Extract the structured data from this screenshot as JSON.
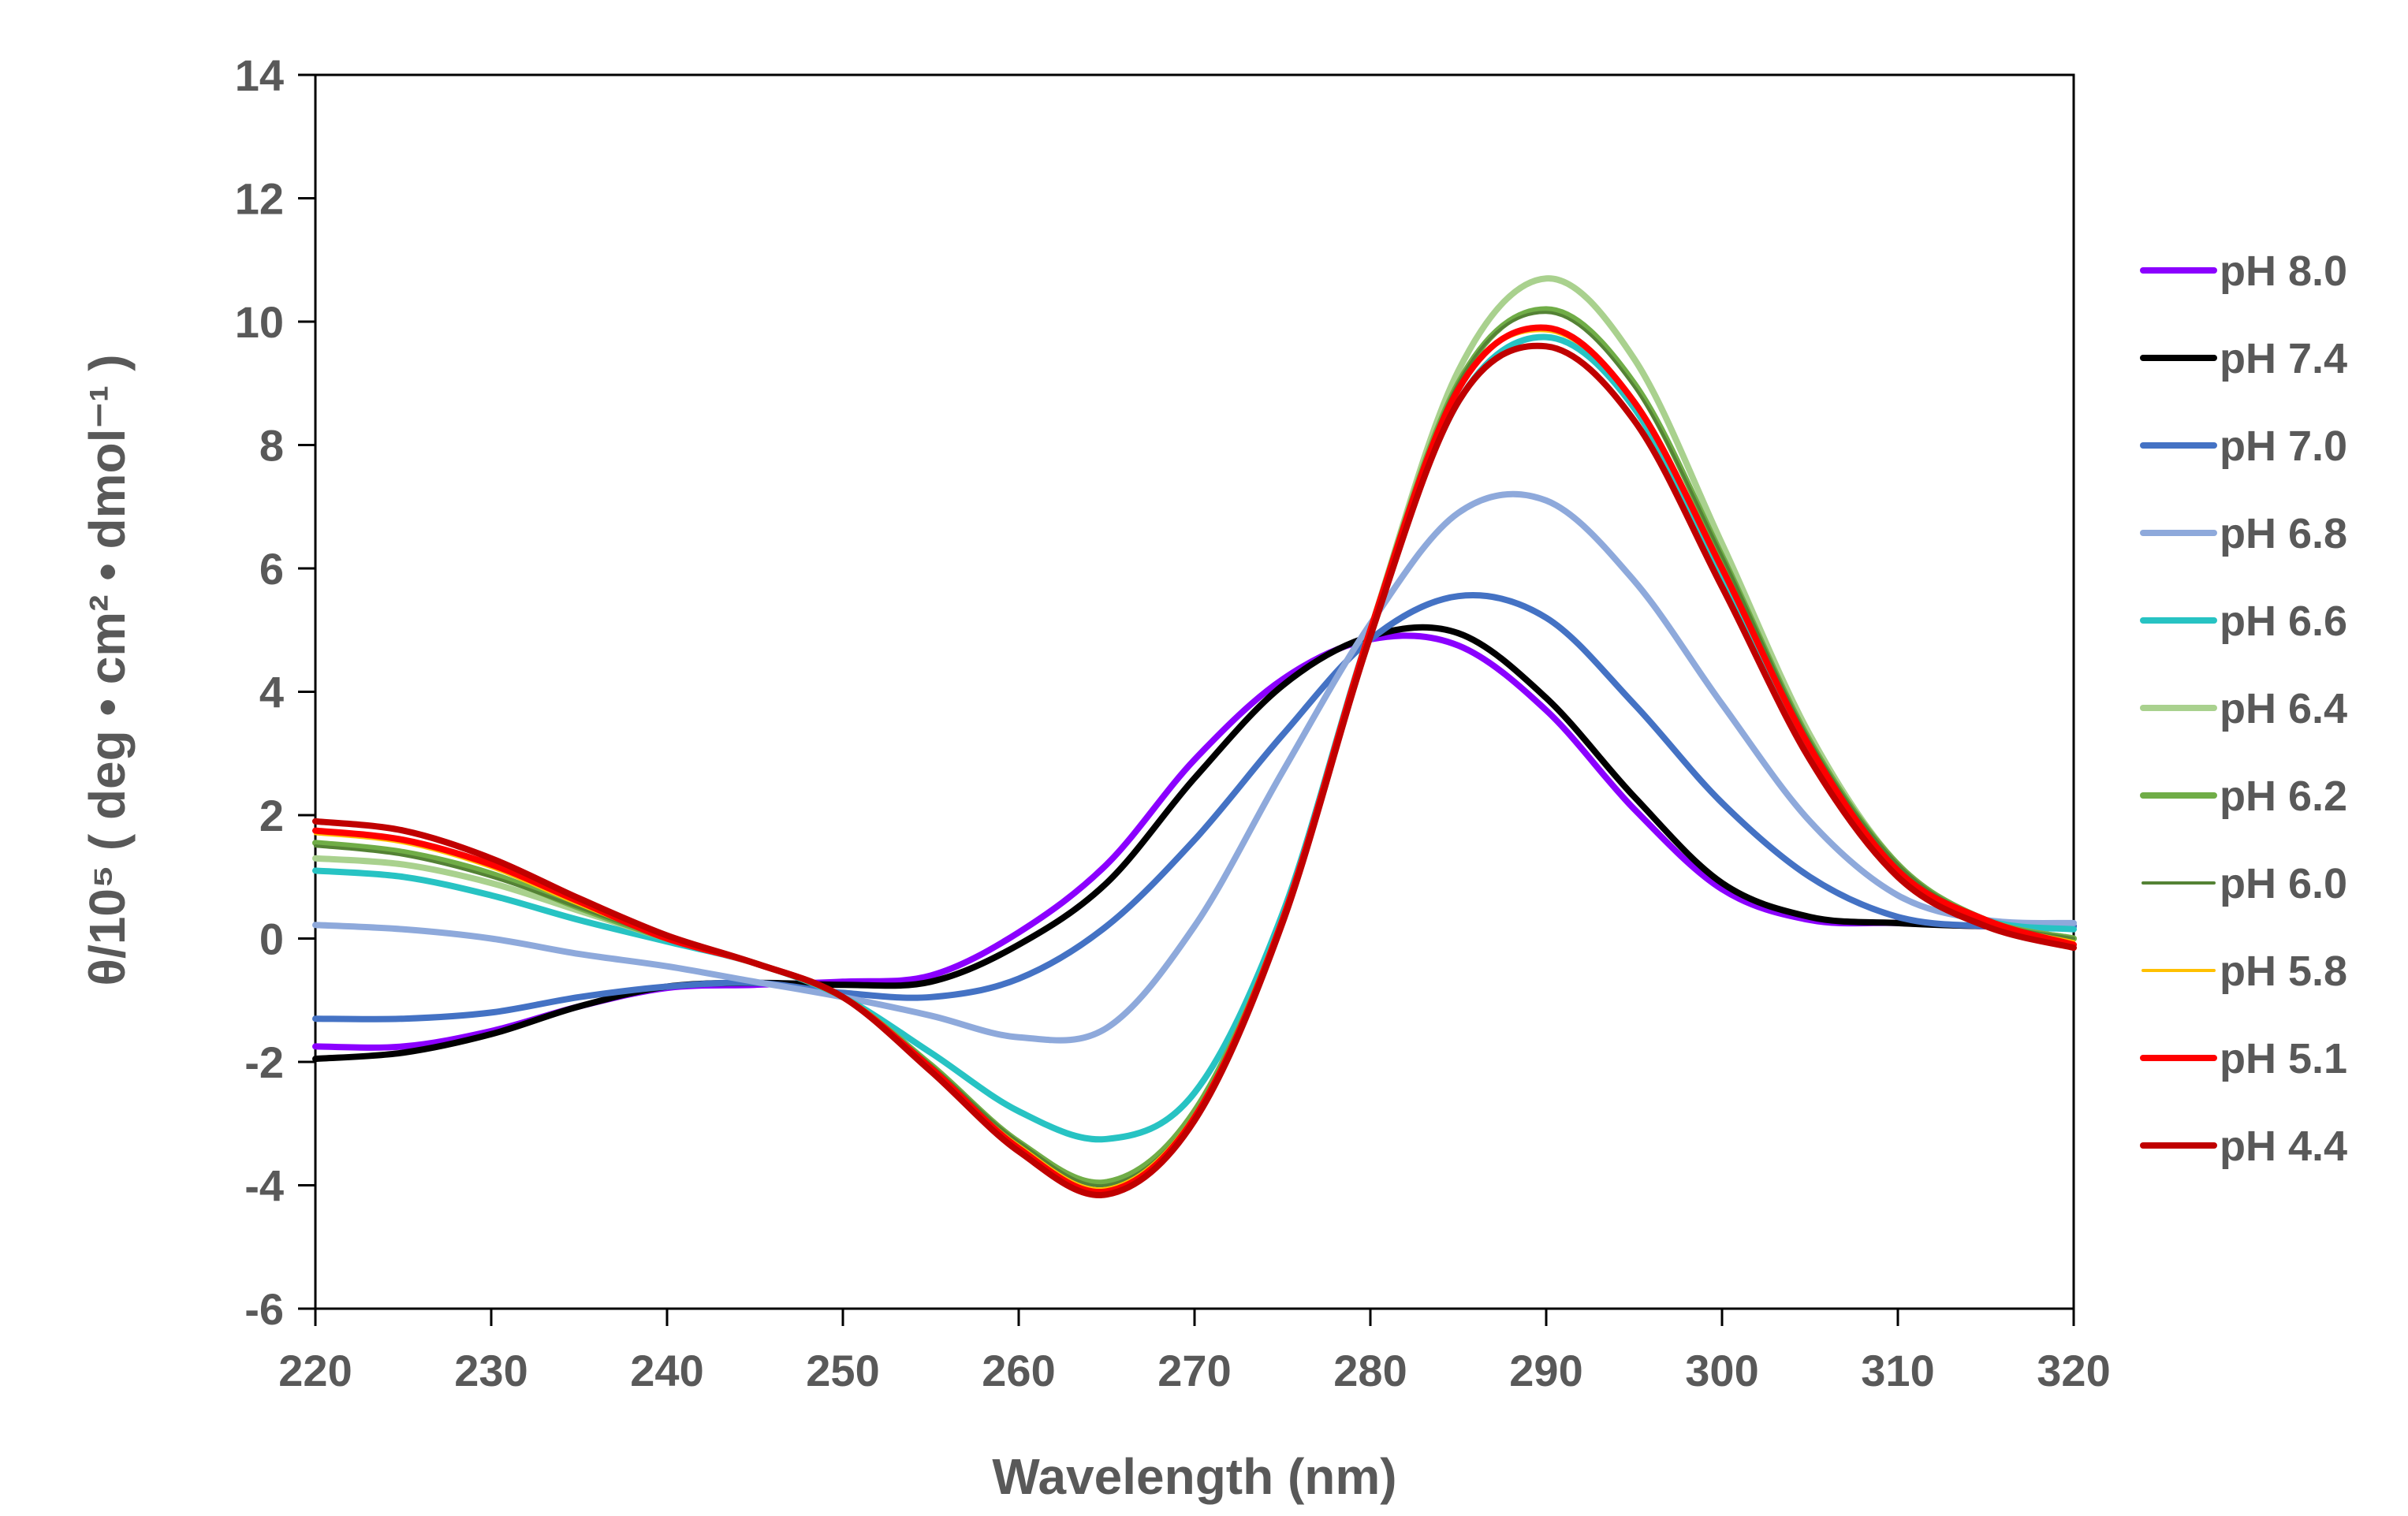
{
  "chart_data": {
    "type": "line",
    "title": "",
    "xlabel": "Wavelength (nm)",
    "ylabel": "θ/10⁵ ( deg • cm² • dmol⁻¹ )",
    "xlim": [
      220,
      320
    ],
    "ylim": [
      -6,
      14
    ],
    "x_ticks": [
      220,
      230,
      240,
      250,
      260,
      270,
      280,
      290,
      300,
      310,
      320
    ],
    "y_ticks": [
      -6,
      -4,
      -2,
      0,
      2,
      4,
      6,
      8,
      10,
      12,
      14
    ],
    "x_tick_labels": [
      "220",
      "230",
      "240",
      "250",
      "260",
      "270",
      "280",
      "290",
      "300",
      "310",
      "320"
    ],
    "y_tick_labels": [
      "-6",
      "-4",
      "-2",
      "0",
      "2",
      "4",
      "6",
      "8",
      "10",
      "12",
      "14"
    ],
    "grid": false,
    "legend_position": "right",
    "x": [
      220,
      225,
      230,
      235,
      240,
      245,
      250,
      255,
      260,
      265,
      270,
      275,
      280,
      285,
      290,
      295,
      300,
      305,
      310,
      315,
      320
    ],
    "series": [
      {
        "name": "pH 8.0",
        "color": "#8B00FF",
        "width": 8,
        "values": [
          -1.75,
          -1.75,
          -1.5,
          -1.1,
          -0.8,
          -0.75,
          -0.7,
          -0.6,
          0.1,
          1.2,
          2.9,
          4.2,
          4.85,
          4.75,
          3.7,
          2.1,
          0.8,
          0.3,
          0.25,
          0.2,
          0.2
        ]
      },
      {
        "name": "pH 7.4",
        "color": "#000000",
        "width": 8,
        "values": [
          -1.95,
          -1.85,
          -1.55,
          -1.1,
          -0.78,
          -0.72,
          -0.75,
          -0.7,
          -0.1,
          0.9,
          2.6,
          4.1,
          4.9,
          4.95,
          3.9,
          2.3,
          0.9,
          0.35,
          0.25,
          0.2,
          0.2
        ]
      },
      {
        "name": "pH 7.0",
        "color": "#4472C4",
        "width": 8,
        "values": [
          -1.3,
          -1.3,
          -1.2,
          -0.95,
          -0.78,
          -0.72,
          -0.88,
          -0.95,
          -0.65,
          0.2,
          1.6,
          3.3,
          4.85,
          5.55,
          5.2,
          3.8,
          2.2,
          1.0,
          0.35,
          0.2,
          0.2
        ]
      },
      {
        "name": "pH 6.8",
        "color": "#8EA9DB",
        "width": 8,
        "values": [
          0.22,
          0.15,
          0.0,
          -0.25,
          -0.45,
          -0.7,
          -0.95,
          -1.25,
          -1.6,
          -1.45,
          0.2,
          2.7,
          5.1,
          6.9,
          7.1,
          5.8,
          3.8,
          1.9,
          0.7,
          0.3,
          0.25
        ]
      },
      {
        "name": "pH 6.6",
        "color": "#27C3C3",
        "width": 8,
        "values": [
          1.1,
          1.0,
          0.7,
          0.3,
          -0.05,
          -0.4,
          -0.95,
          -1.85,
          -2.8,
          -3.25,
          -2.5,
          0.4,
          5.0,
          8.7,
          9.75,
          8.6,
          5.8,
          3.0,
          1.1,
          0.3,
          0.15
        ]
      },
      {
        "name": "pH 6.4",
        "color": "#A9D18E",
        "width": 8,
        "values": [
          1.3,
          1.2,
          0.9,
          0.45,
          0.0,
          -0.4,
          -0.95,
          -2.05,
          -3.3,
          -3.95,
          -2.8,
          0.3,
          5.0,
          9.2,
          10.7,
          9.4,
          6.4,
          3.3,
          1.2,
          0.3,
          0.0
        ]
      },
      {
        "name": "pH 6.2",
        "color": "#70AD47",
        "width": 8,
        "values": [
          1.55,
          1.4,
          1.05,
          0.5,
          0.0,
          -0.4,
          -0.95,
          -2.05,
          -3.3,
          -3.95,
          -2.8,
          0.3,
          5.0,
          9.0,
          10.2,
          9.0,
          6.2,
          3.2,
          1.2,
          0.3,
          0.0
        ]
      },
      {
        "name": "pH 6.0",
        "color": "#548235",
        "width": 4,
        "values": [
          1.5,
          1.35,
          1.0,
          0.5,
          0.0,
          -0.4,
          -0.95,
          -2.05,
          -3.3,
          -4.0,
          -2.85,
          0.3,
          5.0,
          9.0,
          10.15,
          8.95,
          6.2,
          3.2,
          1.2,
          0.3,
          0.0
        ]
      },
      {
        "name": "pH 5.8",
        "color": "#FFC000",
        "width": 4,
        "values": [
          1.7,
          1.55,
          1.15,
          0.55,
          0.0,
          -0.4,
          -0.95,
          -2.1,
          -3.35,
          -4.05,
          -2.85,
          0.3,
          5.0,
          8.9,
          9.85,
          8.7,
          6.0,
          3.1,
          1.1,
          0.3,
          -0.05
        ]
      },
      {
        "name": "pH 5.1",
        "color": "#FF0000",
        "width": 8,
        "values": [
          1.75,
          1.6,
          1.2,
          0.6,
          0.0,
          -0.4,
          -0.95,
          -2.1,
          -3.4,
          -4.1,
          -2.9,
          0.3,
          5.0,
          8.9,
          9.9,
          8.7,
          6.0,
          3.1,
          1.1,
          0.3,
          -0.1
        ]
      },
      {
        "name": "pH 4.4",
        "color": "#C00000",
        "width": 8,
        "values": [
          1.9,
          1.75,
          1.3,
          0.65,
          0.05,
          -0.4,
          -0.95,
          -2.15,
          -3.45,
          -4.15,
          -2.95,
          0.25,
          4.9,
          8.7,
          9.6,
          8.4,
          5.7,
          2.9,
          1.0,
          0.2,
          -0.15
        ]
      }
    ]
  }
}
